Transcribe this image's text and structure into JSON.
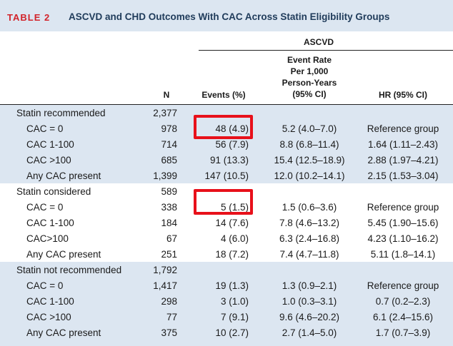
{
  "title": {
    "tag": "TABLE 2",
    "text": "ASCVD and CHD Outcomes With CAC Across Statin Eligibility Groups"
  },
  "header": {
    "group": "ASCVD",
    "n": "N",
    "events": "Events (%)",
    "event_rate_1": "Event Rate",
    "event_rate_2": "Per 1,000",
    "event_rate_3": "Person-Years",
    "event_rate_4": "(95% CI)",
    "hr": "HR (95% CI)"
  },
  "rows": [
    {
      "label": "Statin recommended",
      "n": "2,377",
      "events": "",
      "rate": "",
      "hr": ""
    },
    {
      "label": "CAC = 0",
      "n": "978",
      "events": "48 (4.9)",
      "rate": "5.2 (4.0–7.0)",
      "hr": "Reference group"
    },
    {
      "label": "CAC 1-100",
      "n": "714",
      "events": "56 (7.9)",
      "rate": "8.8 (6.8–11.4)",
      "hr": "1.64 (1.11–2.43)"
    },
    {
      "label": "CAC >100",
      "n": "685",
      "events": "91 (13.3)",
      "rate": "15.4 (12.5–18.9)",
      "hr": "2.88 (1.97–4.21)"
    },
    {
      "label": "Any CAC present",
      "n": "1,399",
      "events": "147 (10.5)",
      "rate": "12.0 (10.2–14.1)",
      "hr": "2.15 (1.53–3.04)"
    },
    {
      "label": "Statin considered",
      "n": "589",
      "events": "",
      "rate": "",
      "hr": ""
    },
    {
      "label": "CAC = 0",
      "n": "338",
      "events": "5 (1.5)",
      "rate": "1.5 (0.6–3.6)",
      "hr": "Reference group"
    },
    {
      "label": "CAC 1-100",
      "n": "184",
      "events": "14 (7.6)",
      "rate": "7.8 (4.6–13.2)",
      "hr": "5.45 (1.90–15.6)"
    },
    {
      "label": "CAC>100",
      "n": "67",
      "events": "4 (6.0)",
      "rate": "6.3 (2.4–16.8)",
      "hr": "4.23 (1.10–16.2)"
    },
    {
      "label": "Any CAC present",
      "n": "251",
      "events": "18 (7.2)",
      "rate": "7.4 (4.7–11.8)",
      "hr": "5.11 (1.8–14.1)"
    },
    {
      "label": "Statin not recommended",
      "n": "1,792",
      "events": "",
      "rate": "",
      "hr": ""
    },
    {
      "label": "CAC = 0",
      "n": "1,417",
      "events": "19 (1.3)",
      "rate": "1.3 (0.9–2.1)",
      "hr": "Reference group"
    },
    {
      "label": "CAC 1-100",
      "n": "298",
      "events": "3 (1.0)",
      "rate": "1.0 (0.3–3.1)",
      "hr": "0.7 (0.2–2.3)"
    },
    {
      "label": "CAC >100",
      "n": "77",
      "events": "7 (9.1)",
      "rate": "9.6 (4.6–20.2)",
      "hr": "6.1 (2.4–15.6)"
    },
    {
      "label": "Any CAC present",
      "n": "375",
      "events": "10 (2.7)",
      "rate": "2.7 (1.4–5.0)",
      "hr": "1.7 (0.7–3.9)"
    }
  ],
  "highlight_color": "#e8101a"
}
